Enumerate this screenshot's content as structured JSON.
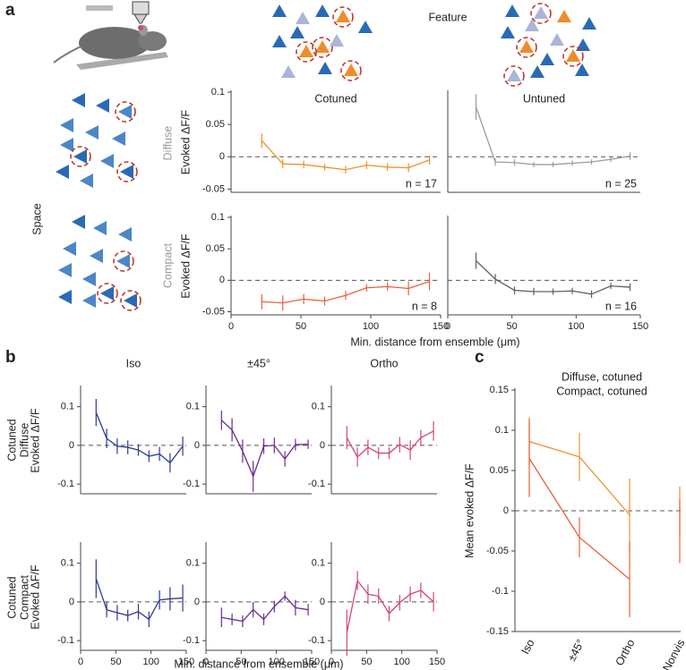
{
  "figure": {
    "panel_labels": [
      "a",
      "b",
      "c"
    ],
    "feature": "Feature",
    "space": "Space",
    "a_rows": [
      "Diffuse",
      "Compact"
    ],
    "b_rows": [
      [
        "Cotuned",
        "Diffuse"
      ],
      [
        "Cotuned",
        "Compact"
      ]
    ],
    "b_row_colors": [
      "#f0922b",
      "#e8603c"
    ],
    "xlabel_a": "Min. distance from ensemble (μm)",
    "xlabel_b": "Min. distance from ensemble (μm)"
  },
  "chart_data": [
    {
      "type": "line",
      "title": "Cotuned",
      "ylabel": "Evoked ΔF/F",
      "annotation": "n = 17",
      "color": "#f0922b",
      "x": [
        22,
        37,
        52,
        67,
        82,
        97,
        112,
        127,
        142
      ],
      "values": [
        0.025,
        -0.011,
        -0.012,
        -0.016,
        -0.02,
        -0.013,
        -0.016,
        -0.017,
        -0.005
      ],
      "errors": [
        0.011,
        0.007,
        0.006,
        0.005,
        0.006,
        0.006,
        0.006,
        0.007,
        0.007
      ],
      "xlim": [
        0,
        150
      ],
      "ylim": [
        -0.055,
        0.1
      ],
      "yticks": [
        -0.05,
        0,
        0.05,
        0.1
      ],
      "hline": 0
    },
    {
      "type": "line",
      "title": "Untuned",
      "annotation": "n = 25",
      "color": "#9c9c9c",
      "x": [
        22,
        37,
        52,
        67,
        82,
        97,
        112,
        127,
        142
      ],
      "values": [
        0.077,
        -0.008,
        -0.009,
        -0.012,
        -0.012,
        -0.01,
        -0.008,
        -0.004,
        0.001
      ],
      "errors": [
        0.02,
        0.006,
        0.005,
        0.004,
        0.004,
        0.004,
        0.004,
        0.004,
        0.006
      ],
      "xlim": [
        0,
        150
      ],
      "ylim": [
        -0.055,
        0.1
      ],
      "hline": 0
    },
    {
      "type": "line",
      "ylabel": "Evoked ΔF/F",
      "annotation": "n = 8",
      "color": "#e8603c",
      "x": [
        22,
        37,
        52,
        67,
        82,
        97,
        112,
        127,
        142
      ],
      "values": [
        -0.034,
        -0.036,
        -0.03,
        -0.033,
        -0.024,
        -0.012,
        -0.01,
        -0.013,
        -0.002
      ],
      "errors": [
        0.012,
        0.012,
        0.008,
        0.007,
        0.007,
        0.006,
        0.007,
        0.011,
        0.014
      ],
      "xlim": [
        0,
        150
      ],
      "ylim": [
        -0.055,
        0.1
      ],
      "xticks": [
        0,
        50,
        100,
        150
      ],
      "yticks": [
        -0.05,
        0,
        0.05,
        0.1
      ],
      "hline": 0
    },
    {
      "type": "line",
      "annotation": "n = 16",
      "color": "#606060",
      "x": [
        22,
        37,
        52,
        67,
        82,
        97,
        112,
        127,
        142
      ],
      "values": [
        0.031,
        0.002,
        -0.016,
        -0.018,
        -0.018,
        -0.017,
        -0.022,
        -0.009,
        -0.011
      ],
      "errors": [
        0.013,
        0.008,
        0.006,
        0.006,
        0.005,
        0.005,
        0.006,
        0.005,
        0.006
      ],
      "xlim": [
        0,
        150
      ],
      "ylim": [
        -0.055,
        0.1
      ],
      "xticks": [
        0,
        50,
        100,
        150
      ],
      "hline": 0
    },
    {
      "type": "line",
      "title": "Iso",
      "ylabel": "Evoked ΔF/F",
      "color": "#2e3a8c",
      "x": [
        22,
        37,
        52,
        67,
        82,
        97,
        112,
        127,
        145
      ],
      "values": [
        0.085,
        0.018,
        -0.002,
        -0.005,
        -0.012,
        -0.028,
        -0.022,
        -0.045,
        -0.002
      ],
      "errors": [
        0.035,
        0.025,
        0.02,
        0.018,
        0.015,
        0.015,
        0.018,
        0.025,
        0.025
      ],
      "xlim": [
        0,
        150
      ],
      "ylim": [
        -0.125,
        0.15
      ],
      "yticks": [
        -0.1,
        0,
        0.1
      ],
      "hline": 0
    },
    {
      "type": "line",
      "title": "±45°",
      "color": "#6b2c91",
      "x": [
        22,
        37,
        52,
        67,
        82,
        97,
        112,
        127,
        145
      ],
      "values": [
        0.065,
        0.04,
        -0.015,
        -0.08,
        -0.002,
        0,
        -0.035,
        0.002,
        0.003
      ],
      "errors": [
        0.025,
        0.03,
        0.03,
        0.04,
        0.02,
        0.02,
        0.02,
        0.015,
        0.012
      ],
      "xlim": [
        0,
        150
      ],
      "ylim": [
        -0.125,
        0.15
      ],
      "yticks": [
        -0.1,
        0,
        0.1
      ],
      "hline": 0
    },
    {
      "type": "line",
      "title": "Ortho",
      "color": "#d1457f",
      "x": [
        22,
        37,
        52,
        67,
        82,
        97,
        112,
        127,
        145
      ],
      "values": [
        0.02,
        -0.03,
        -0.005,
        -0.02,
        -0.02,
        0.002,
        -0.012,
        0.02,
        0.037
      ],
      "errors": [
        0.03,
        0.025,
        0.02,
        0.015,
        0.015,
        0.02,
        0.025,
        0.02,
        0.025
      ],
      "xlim": [
        0,
        150
      ],
      "ylim": [
        -0.125,
        0.15
      ],
      "yticks": [
        -0.1,
        0,
        0.1
      ],
      "hline": 0
    },
    {
      "type": "line",
      "ylabel": "Evoked ΔF/F",
      "color": "#2e3a8c",
      "x": [
        22,
        37,
        52,
        67,
        82,
        97,
        112,
        127,
        145
      ],
      "values": [
        0.06,
        -0.02,
        -0.028,
        -0.035,
        -0.025,
        -0.045,
        0.005,
        0.008,
        0.01
      ],
      "errors": [
        0.05,
        0.02,
        0.02,
        0.015,
        0.02,
        0.02,
        0.025,
        0.03,
        0.035
      ],
      "xlim": [
        0,
        150
      ],
      "ylim": [
        -0.125,
        0.15
      ],
      "xticks": [
        0,
        50,
        100,
        150
      ],
      "yticks": [
        -0.1,
        0,
        0.1
      ],
      "hline": 0
    },
    {
      "type": "line",
      "color": "#6b2c91",
      "x": [
        22,
        37,
        52,
        67,
        82,
        97,
        112,
        127,
        145
      ],
      "values": [
        -0.04,
        -0.045,
        -0.05,
        -0.02,
        -0.045,
        -0.012,
        0.015,
        -0.015,
        -0.02
      ],
      "errors": [
        0.025,
        0.015,
        0.015,
        0.02,
        0.015,
        0.015,
        0.012,
        0.02,
        0.015
      ],
      "xlim": [
        0,
        150
      ],
      "ylim": [
        -0.125,
        0.15
      ],
      "xticks": [
        0,
        50,
        100,
        150
      ],
      "yticks": [
        -0.1,
        0,
        0.1
      ],
      "hline": 0
    },
    {
      "type": "line",
      "color": "#d1457f",
      "x": [
        22,
        37,
        52,
        67,
        82,
        97,
        112,
        127,
        145
      ],
      "values": [
        -0.08,
        0.055,
        0.02,
        0.015,
        -0.03,
        -0.002,
        0.02,
        0.03,
        0
      ],
      "errors": [
        0.06,
        0.025,
        0.025,
        0.02,
        0.02,
        0.02,
        0.02,
        0.02,
        0.025
      ],
      "xlim": [
        0,
        150
      ],
      "ylim": [
        -0.125,
        0.15
      ],
      "xticks": [
        0,
        50,
        100,
        150
      ],
      "yticks": [
        -0.1,
        0,
        0.1
      ],
      "hline": 0
    },
    {
      "type": "line",
      "ylabel": "Mean evoked ΔF/F",
      "categories": [
        "Iso",
        "±45°",
        "Ortho"
      ],
      "category_colors": [
        "#2e3a8c",
        "#6b2c91",
        "#d1457f"
      ],
      "nonvis_label": "Nonvis",
      "series": [
        {
          "name": "Diffuse, cotuned",
          "color": "#f0922b",
          "values": [
            0.086,
            0.067,
            -0.005
          ],
          "errors": [
            0.03,
            0.03,
            0.045
          ],
          "nonvis_value": 0,
          "nonvis_error": 0.03
        },
        {
          "name": "Compact, cotuned",
          "color": "#e8603c",
          "values": [
            0.065,
            -0.033,
            -0.085
          ],
          "errors": [
            0.048,
            0.025,
            0.047
          ],
          "nonvis_value": -0.025,
          "nonvis_error": 0.04
        }
      ],
      "ylim": [
        -0.15,
        0.15
      ],
      "yticks": [
        -0.15,
        -0.1,
        -0.05,
        0,
        0.05,
        0.1,
        0.15
      ],
      "hline": 0
    }
  ]
}
